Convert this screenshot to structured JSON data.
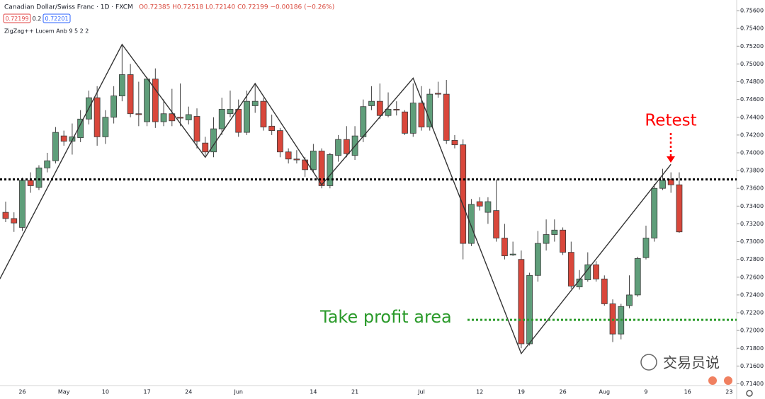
{
  "header": {
    "title": "Canadian Dollar/Swiss Franc · 1D · FXCM",
    "readout": "O0.72385 H0.72518 L0.72140 C0.72199 −0.00186 (−0.26%)",
    "bid": "0.72199",
    "spread": "0.2",
    "ask": "0.72201",
    "indicator": "ZigZag++ Lucem Anb 9 5 2 2",
    "watermark": "交易员说"
  },
  "chart_data": {
    "type": "candlestick",
    "up_color": "#5f9e7a",
    "down_color": "#d9473b",
    "categories": [
      null,
      null,
      "26",
      null,
      null,
      null,
      null,
      "May",
      null,
      null,
      null,
      null,
      "10",
      null,
      null,
      null,
      null,
      "17",
      null,
      null,
      null,
      null,
      "24",
      null,
      null,
      null,
      null,
      null,
      "Jun",
      null,
      null,
      null,
      null,
      null,
      null,
      null,
      null,
      "14",
      null,
      null,
      null,
      null,
      "21",
      null,
      null,
      null,
      null,
      null,
      null,
      null,
      "Jul",
      null,
      null,
      null,
      null,
      null,
      null,
      "12",
      null,
      null,
      null,
      null,
      "19",
      null,
      null,
      null,
      null,
      "26",
      null,
      null,
      null,
      null,
      "Aug",
      null,
      null,
      null,
      null,
      "9",
      null,
      null,
      null,
      null,
      "16",
      null,
      null,
      null,
      null,
      "23"
    ],
    "open": [
      0.7333,
      0.7326,
      0.7316,
      0.7369,
      0.7361,
      0.7383,
      0.7391,
      0.7419,
      0.7413,
      0.7417,
      0.7438,
      0.7462,
      0.7418,
      0.744,
      0.7464,
      0.7488,
      0.7444,
      0.7435,
      0.7483,
      0.7435,
      0.7444,
      0.744,
      0.7437,
      0.7441,
      0.7411,
      0.7401,
      0.7427,
      0.7444,
      0.7449,
      0.7423,
      0.7453,
      0.7458,
      0.743,
      0.7425,
      0.7401,
      0.7393,
      0.7392,
      0.7381,
      0.7402,
      0.7363,
      0.7397,
      0.7415,
      0.7397,
      0.7418,
      0.7453,
      0.7458,
      0.7442,
      0.7449,
      0.7446,
      0.7422,
      0.7456,
      0.7429,
      0.7467,
      0.7466,
      0.7414,
      0.7409,
      0.7298,
      0.7345,
      0.7333,
      0.7335,
      0.7304,
      0.7285,
      0.728,
      0.7185,
      0.7262,
      0.7298,
      0.7308,
      0.7313,
      0.7288,
      0.7249,
      0.7257,
      0.7274,
      0.7258,
      0.723,
      0.7196,
      0.7228,
      0.724,
      0.7282,
      0.7304,
      0.736,
      0.737,
      0.7364,
      null,
      null,
      null,
      null,
      null,
      null
    ],
    "high": [
      0.7345,
      0.7333,
      0.7372,
      0.7378,
      0.7386,
      0.74,
      0.7429,
      0.7425,
      0.7433,
      0.7448,
      0.747,
      0.7475,
      0.7448,
      0.7475,
      0.7522,
      0.75,
      0.748,
      0.7485,
      0.7495,
      0.746,
      0.7472,
      0.7478,
      0.7452,
      0.745,
      0.7418,
      0.744,
      0.7462,
      0.747,
      0.746,
      0.747,
      0.7478,
      0.7462,
      0.7443,
      0.7428,
      0.7405,
      0.7403,
      0.7395,
      0.741,
      0.7405,
      0.74,
      0.742,
      0.743,
      0.743,
      0.746,
      0.7475,
      0.7478,
      0.7468,
      0.7458,
      0.7448,
      0.7478,
      0.7475,
      0.7472,
      0.748,
      0.7482,
      0.742,
      0.7415,
      0.7348,
      0.735,
      0.735,
      0.737,
      0.732,
      0.73,
      0.729,
      0.7265,
      0.7312,
      0.7325,
      0.7325,
      0.7316,
      0.73,
      0.7268,
      0.7288,
      0.7278,
      0.7262,
      0.7235,
      0.723,
      0.7262,
      0.7283,
      0.7318,
      0.7365,
      0.7382,
      0.7378,
      0.7378,
      null,
      null,
      null,
      null,
      null,
      null
    ],
    "low": [
      0.7322,
      0.7311,
      0.7312,
      0.7355,
      0.7358,
      0.7378,
      0.7388,
      0.7408,
      0.7398,
      0.7412,
      0.7432,
      0.7408,
      0.741,
      0.7433,
      0.7458,
      0.744,
      0.743,
      0.743,
      0.7428,
      0.743,
      0.743,
      0.743,
      0.7432,
      0.7405,
      0.7397,
      0.7395,
      0.742,
      0.744,
      0.7418,
      0.742,
      0.7445,
      0.7425,
      0.742,
      0.7395,
      0.7388,
      0.7388,
      0.7373,
      0.7378,
      0.736,
      0.736,
      0.739,
      0.7395,
      0.7392,
      0.7412,
      0.7448,
      0.7438,
      0.744,
      0.7442,
      0.742,
      0.7418,
      0.7425,
      0.7425,
      0.7462,
      0.741,
      0.7405,
      0.728,
      0.7295,
      0.7335,
      0.732,
      0.73,
      0.728,
      0.7284,
      0.718,
      0.7183,
      0.7255,
      0.729,
      0.73,
      0.7285,
      0.7247,
      0.7246,
      0.7255,
      0.7255,
      0.7228,
      0.7187,
      0.719,
      0.7225,
      0.7238,
      0.728,
      0.73,
      0.7358,
      0.7355,
      0.731,
      null,
      null,
      null,
      null,
      null,
      null
    ],
    "close": [
      0.7326,
      0.7321,
      0.7369,
      0.7363,
      0.7383,
      0.7391,
      0.7423,
      0.7413,
      0.7418,
      0.7438,
      0.7462,
      0.7418,
      0.744,
      0.7464,
      0.7488,
      0.7444,
      0.7443,
      0.7483,
      0.7435,
      0.7444,
      0.7436,
      0.7439,
      0.7443,
      0.7413,
      0.7401,
      0.7427,
      0.7449,
      0.7449,
      0.7423,
      0.7458,
      0.7458,
      0.7429,
      0.7425,
      0.7401,
      0.7393,
      0.7392,
      0.7381,
      0.7402,
      0.7363,
      0.7398,
      0.7415,
      0.7399,
      0.7419,
      0.7452,
      0.7458,
      0.7442,
      0.7449,
      0.7448,
      0.7422,
      0.7456,
      0.7429,
      0.7466,
      0.7466,
      0.7414,
      0.7409,
      0.7298,
      0.7342,
      0.734,
      0.7345,
      0.7304,
      0.7284,
      0.7286,
      0.7185,
      0.7262,
      0.7298,
      0.7308,
      0.7313,
      0.7288,
      0.725,
      0.7258,
      0.7274,
      0.7258,
      0.723,
      0.7196,
      0.7227,
      0.724,
      0.7281,
      0.7304,
      0.736,
      0.7369,
      0.7364,
      0.7311,
      null,
      null,
      null,
      null,
      null,
      null
    ],
    "zigzag": {
      "color": "#333333",
      "x": [
        -0.7,
        14,
        24,
        30,
        38,
        49,
        62,
        80
      ],
      "values": [
        0.7258,
        0.7522,
        0.7395,
        0.7478,
        0.7364,
        0.7484,
        0.7174,
        0.7387
      ]
    },
    "levels": [
      {
        "value": 0.737,
        "color": "#000000"
      },
      {
        "value": 0.7212,
        "color": "#2a9a2a",
        "label": "Take profit area"
      }
    ],
    "annotation": {
      "text": "Retest",
      "color": "#ff0000"
    },
    "ylim": [
      0.7138,
      0.7572
    ],
    "yticks": [
      {
        "value": 0.714,
        "label": "0.71400"
      },
      {
        "value": 0.716,
        "label": "0.71600"
      },
      {
        "value": 0.718,
        "label": "0.71800"
      },
      {
        "value": 0.72,
        "label": "0.72000"
      },
      {
        "value": 0.722,
        "label": "0.72200"
      },
      {
        "value": 0.724,
        "label": "0.72400"
      },
      {
        "value": 0.726,
        "label": "0.72600"
      },
      {
        "value": 0.728,
        "label": "0.72800"
      },
      {
        "value": 0.73,
        "label": "0.73000"
      },
      {
        "value": 0.732,
        "label": "0.73200"
      },
      {
        "value": 0.734,
        "label": "0.73400"
      },
      {
        "value": 0.736,
        "label": "0.73600"
      },
      {
        "value": 0.738,
        "label": "0.73800"
      },
      {
        "value": 0.74,
        "label": "0.74000"
      },
      {
        "value": 0.742,
        "label": "0.74200"
      },
      {
        "value": 0.744,
        "label": "0.74400"
      },
      {
        "value": 0.746,
        "label": "0.74600"
      },
      {
        "value": 0.748,
        "label": "0.74800"
      },
      {
        "value": 0.75,
        "label": "0.75000"
      },
      {
        "value": 0.752,
        "label": "0.75200"
      },
      {
        "value": 0.754,
        "label": "0.75400"
      },
      {
        "value": 0.756,
        "label": "0.75600"
      }
    ],
    "grid": false
  }
}
